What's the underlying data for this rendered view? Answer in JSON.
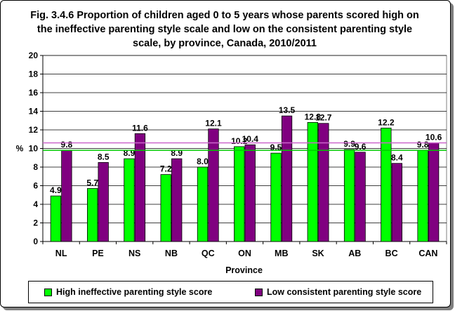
{
  "title": "Fig. 3.4.6 Proportion of children aged 0 to 5 years whose parents scored high on the ineffective parenting style scale and low on the consistent parenting style scale, by province, Canada, 2010/2011",
  "chart_data": {
    "type": "bar",
    "title": "Fig. 3.4.6 Proportion of children aged 0 to 5 years whose parents scored high on the ineffective parenting style scale and low on the consistent parenting style scale, by province, Canada, 2010/2011",
    "xlabel": "Province",
    "ylabel": "%",
    "ylim": [
      0,
      20
    ],
    "yticks": [
      0,
      2,
      4,
      6,
      8,
      10,
      12,
      14,
      16,
      18,
      20
    ],
    "categories": [
      "NL",
      "PE",
      "NS",
      "NB",
      "QC",
      "ON",
      "MB",
      "SK",
      "AB",
      "BC",
      "CAN"
    ],
    "series": [
      {
        "name": "High ineffective parenting style score",
        "color": "#00ff00",
        "values": [
          4.9,
          5.7,
          8.9,
          7.2,
          8.0,
          10.2,
          9.5,
          12.8,
          9.9,
          12.2,
          9.8
        ]
      },
      {
        "name": "Low consistent parenting style score",
        "color": "#800080",
        "values": [
          9.8,
          8.5,
          11.6,
          8.9,
          12.1,
          10.4,
          13.5,
          12.7,
          9.6,
          8.4,
          10.6
        ]
      }
    ],
    "reference_lines": [
      {
        "value": 9.8,
        "color": "#00cc00"
      },
      {
        "value": 10.6,
        "color": "#cc66cc"
      }
    ],
    "grid": true,
    "legend_position": "bottom",
    "data_labels": true
  }
}
